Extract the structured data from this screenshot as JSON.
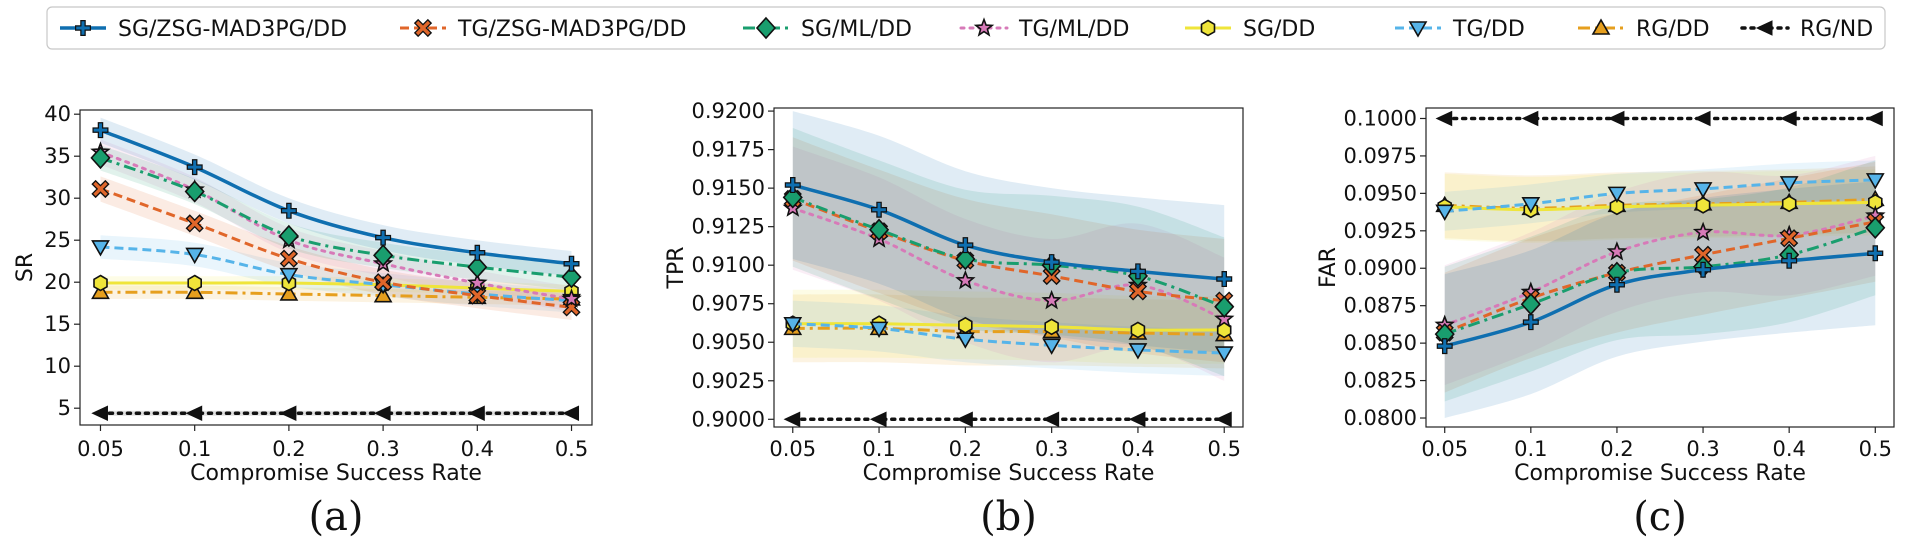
{
  "legend": [
    {
      "name": "SG/ZSG-MAD3PG/DD",
      "color": "#0F6FB0",
      "dash": "solid",
      "marker": "plus",
      "width": 3.5
    },
    {
      "name": "TG/ZSG-MAD3PG/DD",
      "color": "#E0662A",
      "dash": "dash",
      "marker": "x",
      "width": 3
    },
    {
      "name": "SG/ML/DD",
      "color": "#199E6E",
      "dash": "dashdot",
      "marker": "diamond",
      "width": 3
    },
    {
      "name": "TG/ML/DD",
      "color": "#D77AB8",
      "dash": "dot",
      "marker": "star",
      "width": 3
    },
    {
      "name": "SG/DD",
      "color": "#EFE53A",
      "dash": "solid",
      "marker": "hexagon",
      "width": 3
    },
    {
      "name": "TG/DD",
      "color": "#56B4E9",
      "dash": "dash",
      "marker": "triangle-down",
      "width": 3
    },
    {
      "name": "RG/DD",
      "color": "#E69F1E",
      "dash": "dashdot",
      "marker": "triangle-up",
      "width": 3
    },
    {
      "name": "RG/ND",
      "color": "#111111",
      "dash": "dot",
      "marker": "triangle-left",
      "width": 3.5
    }
  ],
  "chart_data": [
    {
      "type": "line",
      "panel_label": "(a)",
      "xlabel": "Compromise Success Rate",
      "ylabel": "SR",
      "categories": [
        "0.05",
        "0.1",
        "0.2",
        "0.3",
        "0.4",
        "0.5"
      ],
      "ylim": [
        3,
        40.5
      ],
      "yticks": [
        5,
        10,
        15,
        20,
        25,
        30,
        35,
        40
      ],
      "ytick_labels": [
        "5",
        "10",
        "15",
        "20",
        "25",
        "30",
        "35",
        "40"
      ],
      "series": [
        {
          "name": "RG/ND",
          "values": [
            4.4,
            4.4,
            4.4,
            4.4,
            4.4,
            4.4
          ],
          "band": 0.3
        },
        {
          "name": "RG/DD",
          "values": [
            18.8,
            18.8,
            18.6,
            18.4,
            18.2,
            18.0
          ],
          "band": 0.8
        },
        {
          "name": "SG/DD",
          "values": [
            19.9,
            19.9,
            19.9,
            19.7,
            19.3,
            18.9
          ],
          "band": 0.8
        },
        {
          "name": "TG/DD",
          "values": [
            24.2,
            23.3,
            20.9,
            19.7,
            18.6,
            17.8
          ],
          "band": 1.4
        },
        {
          "name": "TG/ZSG-MAD3PG/DD",
          "values": [
            31.1,
            27.0,
            22.8,
            20.0,
            18.4,
            17.0
          ],
          "band": 1.5
        },
        {
          "name": "TG/ML/DD",
          "values": [
            35.5,
            31.0,
            25.0,
            22.2,
            19.9,
            18.0
          ],
          "band": 1.5
        },
        {
          "name": "SG/ML/DD",
          "values": [
            34.8,
            30.8,
            25.5,
            23.2,
            21.8,
            20.6
          ],
          "band": 1.5
        },
        {
          "name": "SG/ZSG-MAD3PG/DD",
          "values": [
            38.1,
            33.7,
            28.5,
            25.3,
            23.5,
            22.2
          ],
          "band": 1.5
        }
      ]
    },
    {
      "type": "line",
      "panel_label": "(b)",
      "xlabel": "Compromise Success Rate",
      "ylabel": "TPR",
      "categories": [
        "0.05",
        "0.1",
        "0.2",
        "0.3",
        "0.4",
        "0.5"
      ],
      "ylim": [
        0.8995,
        0.9202
      ],
      "yticks": [
        0.9,
        0.9025,
        0.905,
        0.9075,
        0.91,
        0.9125,
        0.915,
        0.9175,
        0.92
      ],
      "ytick_labels": [
        "0.9000",
        "0.9025",
        "0.9050",
        "0.9075",
        "0.9100",
        "0.9125",
        "0.9150",
        "0.9175",
        "0.9200"
      ],
      "series": [
        {
          "name": "RG/ND",
          "values": [
            0.9,
            0.9,
            0.9,
            0.9,
            0.9,
            0.9
          ],
          "band": 0.0
        },
        {
          "name": "RG/DD",
          "values": [
            0.9059,
            0.9059,
            0.9057,
            0.9057,
            0.9056,
            0.9055
          ],
          "band": 0.0022
        },
        {
          "name": "SG/DD",
          "values": [
            0.9062,
            0.9062,
            0.9061,
            0.906,
            0.9058,
            0.9058
          ],
          "band": 0.0022
        },
        {
          "name": "TG/DD",
          "values": [
            0.9062,
            0.9059,
            0.9052,
            0.9048,
            0.9045,
            0.9043
          ],
          "band": 0.0015
        },
        {
          "name": "TG/ML/DD",
          "values": [
            0.9137,
            0.9117,
            0.909,
            0.9077,
            0.9087,
            0.9065
          ],
          "band": 0.004
        },
        {
          "name": "TG/ZSG-MAD3PG/DD",
          "values": [
            0.9143,
            0.9122,
            0.9103,
            0.9093,
            0.9083,
            0.9077
          ],
          "band": 0.004
        },
        {
          "name": "SG/ML/DD",
          "values": [
            0.9144,
            0.9123,
            0.9104,
            0.91,
            0.9093,
            0.9073
          ],
          "band": 0.0045
        },
        {
          "name": "SG/ZSG-MAD3PG/DD",
          "values": [
            0.9152,
            0.9136,
            0.9113,
            0.9102,
            0.9096,
            0.9091
          ],
          "band": 0.0048
        }
      ]
    },
    {
      "type": "line",
      "panel_label": "(c)",
      "xlabel": "Compromise Success Rate",
      "ylabel": "FAR",
      "categories": [
        "0.05",
        "0.1",
        "0.2",
        "0.3",
        "0.4",
        "0.5"
      ],
      "ylim": [
        0.0794,
        0.1007
      ],
      "yticks": [
        0.08,
        0.0825,
        0.085,
        0.0875,
        0.09,
        0.0925,
        0.095,
        0.0975,
        0.1
      ],
      "ytick_labels": [
        "0.0800",
        "0.0825",
        "0.0850",
        "0.0875",
        "0.0900",
        "0.0925",
        "0.0950",
        "0.0975",
        "0.1000"
      ],
      "series": [
        {
          "name": "RG/ND",
          "values": [
            0.1,
            0.1,
            0.1,
            0.1,
            0.1,
            0.1
          ],
          "band": 0.0
        },
        {
          "name": "RG/DD",
          "values": [
            0.0942,
            0.094,
            0.0942,
            0.0943,
            0.0944,
            0.0946
          ],
          "band": 0.0022
        },
        {
          "name": "SG/DD",
          "values": [
            0.0941,
            0.0939,
            0.0941,
            0.0942,
            0.0943,
            0.0944
          ],
          "band": 0.0022
        },
        {
          "name": "TG/DD",
          "values": [
            0.0938,
            0.0943,
            0.095,
            0.0953,
            0.0957,
            0.0959
          ],
          "band": 0.0013
        },
        {
          "name": "TG/ML/DD",
          "values": [
            0.0862,
            0.0884,
            0.0911,
            0.0924,
            0.0922,
            0.0935
          ],
          "band": 0.004
        },
        {
          "name": "TG/ZSG-MAD3PG/DD",
          "values": [
            0.0857,
            0.088,
            0.0897,
            0.0909,
            0.092,
            0.0931
          ],
          "band": 0.004
        },
        {
          "name": "SG/ML/DD",
          "values": [
            0.0856,
            0.0876,
            0.0897,
            0.0901,
            0.0909,
            0.0927
          ],
          "band": 0.0045
        },
        {
          "name": "SG/ZSG-MAD3PG/DD",
          "values": [
            0.0848,
            0.0864,
            0.0889,
            0.0899,
            0.0905,
            0.091
          ],
          "band": 0.0048
        }
      ]
    }
  ]
}
